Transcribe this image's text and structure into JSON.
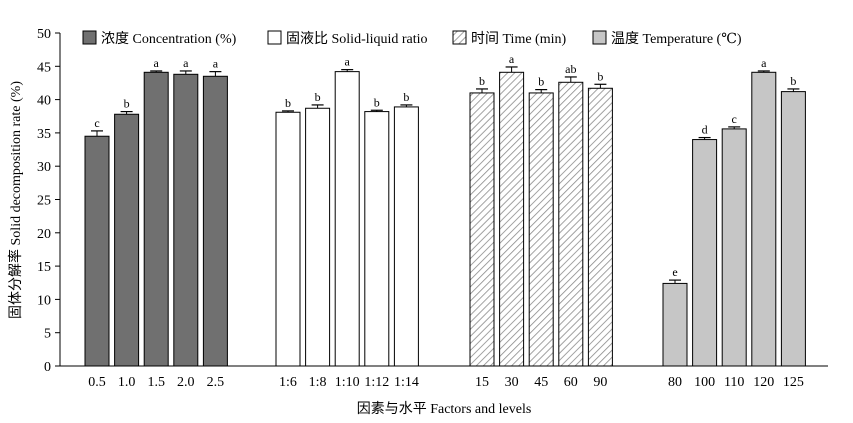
{
  "chart_data": {
    "type": "bar",
    "title": "",
    "xlabel": "因素与水平 Factors and levels",
    "ylabel": "固体分解率 Solid decomposition rate (%)",
    "ylim": [
      0,
      50
    ],
    "yticks": [
      0,
      5,
      10,
      15,
      20,
      25,
      30,
      35,
      40,
      45,
      50
    ],
    "grid": false,
    "legend_position": "top",
    "groups": [
      {
        "name": "浓度 Concentration (%)",
        "style": "dark",
        "fill": "#707070",
        "categories": [
          "0.5",
          "1.0",
          "1.5",
          "2.0",
          "2.5"
        ],
        "values": [
          34.5,
          37.8,
          44.1,
          43.8,
          43.5
        ],
        "errors": [
          0.8,
          0.4,
          0.2,
          0.5,
          0.7
        ],
        "labels": [
          "c",
          "b",
          "a",
          "a",
          "a"
        ]
      },
      {
        "name": "固液比 Solid-liquid ratio",
        "style": "white",
        "fill": "#ffffff",
        "categories": [
          "1:6",
          "1:8",
          "1:10",
          "1:12",
          "1:14"
        ],
        "values": [
          38.1,
          38.7,
          44.2,
          38.2,
          38.9
        ],
        "errors": [
          0.2,
          0.5,
          0.3,
          0.2,
          0.3
        ],
        "labels": [
          "b",
          "b",
          "a",
          "b",
          "b"
        ]
      },
      {
        "name": "时间 Time (min)",
        "style": "hatched",
        "fill": "#ffffff",
        "categories": [
          "15",
          "30",
          "45",
          "60",
          "90"
        ],
        "values": [
          41.0,
          44.1,
          41.0,
          42.6,
          41.7
        ],
        "errors": [
          0.6,
          0.8,
          0.5,
          0.8,
          0.6
        ],
        "labels": [
          "b",
          "a",
          "b",
          "ab",
          "b"
        ]
      },
      {
        "name": "温度 Temperature (℃)",
        "style": "light",
        "fill": "#c6c6c6",
        "categories": [
          "80",
          "100",
          "110",
          "120",
          "125"
        ],
        "values": [
          12.4,
          34.0,
          35.6,
          44.1,
          41.2
        ],
        "errors": [
          0.5,
          0.3,
          0.3,
          0.2,
          0.4
        ],
        "labels": [
          "e",
          "d",
          "c",
          "a",
          "b"
        ]
      }
    ]
  }
}
